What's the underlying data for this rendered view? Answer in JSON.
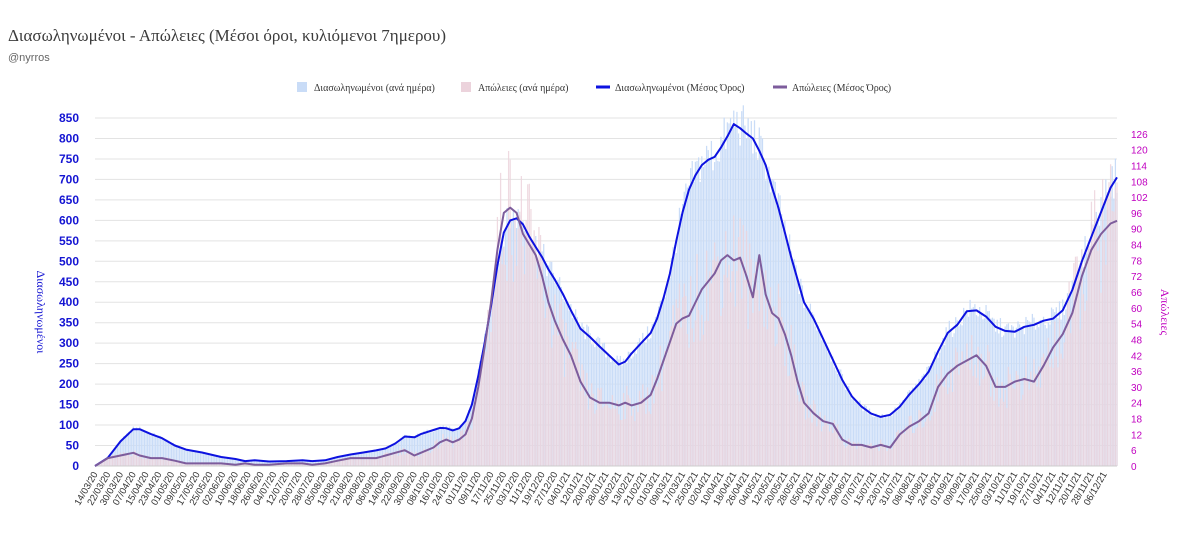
{
  "header": {
    "title": "Διασωληνωμένοι - Απώλειες (Μέσοι όροι, κυλιόμενοι 7ημερου)",
    "handle": "@nyrros"
  },
  "chart_data": {
    "type": "bar",
    "title": "Διασωληνωμένοι - Απώλειες (Μέσοι όροι, κυλιόμενοι 7ημερου)",
    "legend_position": "top",
    "grid": "horizontal",
    "ylabel": "Διασωληνωμένοι",
    "y2label": "Απώλειες",
    "ylim": [
      0,
      850
    ],
    "y2lim": [
      0,
      132
    ],
    "yticks": [
      0,
      50,
      100,
      150,
      200,
      250,
      300,
      350,
      400,
      450,
      500,
      550,
      600,
      650,
      700,
      750,
      800,
      850
    ],
    "y2ticks": [
      0,
      6,
      12,
      18,
      24,
      30,
      36,
      42,
      48,
      54,
      60,
      66,
      72,
      78,
      84,
      90,
      96,
      102,
      108,
      114,
      120,
      126
    ],
    "x_start": "2020-03-14",
    "x_end": "2021-12-14",
    "x_ticks": [
      "14/03/20",
      "22/03/20",
      "30/03/20",
      "07/04/20",
      "15/04/20",
      "23/04/20",
      "01/05/20",
      "09/05/20",
      "17/05/20",
      "25/05/20",
      "02/06/20",
      "10/06/20",
      "18/06/20",
      "26/06/20",
      "04/07/20",
      "12/07/20",
      "20/07/20",
      "28/07/20",
      "05/08/20",
      "13/08/20",
      "21/08/20",
      "29/08/20",
      "06/09/20",
      "14/09/20",
      "22/09/20",
      "30/09/20",
      "08/10/20",
      "16/10/20",
      "24/10/20",
      "01/11/20",
      "09/11/20",
      "17/11/20",
      "25/11/20",
      "03/12/20",
      "11/12/20",
      "19/12/20",
      "27/12/20",
      "04/01/21",
      "12/01/21",
      "20/01/21",
      "28/01/21",
      "05/02/21",
      "13/02/21",
      "21/02/21",
      "01/03/21",
      "09/03/21",
      "17/03/21",
      "25/03/21",
      "02/04/21",
      "10/04/21",
      "18/04/21",
      "26/04/21",
      "04/05/21",
      "12/05/21",
      "20/05/21",
      "28/05/21",
      "05/06/21",
      "13/06/21",
      "21/06/21",
      "29/06/21",
      "07/07/21",
      "15/07/21",
      "23/07/21",
      "31/07/21",
      "08/08/21",
      "16/08/21",
      "24/08/21",
      "01/09/21",
      "09/09/21",
      "17/09/21",
      "25/09/21",
      "03/10/21",
      "11/10/21",
      "19/10/21",
      "27/10/21",
      "04/11/21",
      "12/11/21",
      "20/11/21",
      "28/11/21",
      "06/12/21"
    ],
    "colors": {
      "intubated_daily": "#c9dcf7",
      "deaths_daily": "#ecd3dc",
      "intubated_avg": "#0d12e0",
      "deaths_avg": "#7d5c9c",
      "grid": "#e3e3e3",
      "left_axis": "#1414d2",
      "right_axis": "#c000c0"
    },
    "series": [
      {
        "name": "Διασωληνωμένοι (ανά ημέρα)",
        "type": "bar",
        "axis": "left",
        "note": "daily values closely follow the 7-day average series"
      },
      {
        "name": "Απώλειες (ανά ημέρα)",
        "type": "bar",
        "axis": "right",
        "note": "daily values closely follow the 7-day average series"
      },
      {
        "name": "Διασωληνωμένοι (Μέσος Όρος)",
        "type": "line",
        "axis": "left",
        "points": [
          [
            "2020-03-14",
            0
          ],
          [
            "2020-03-22",
            20
          ],
          [
            "2020-03-30",
            60
          ],
          [
            "2020-04-07",
            90
          ],
          [
            "2020-04-11",
            90
          ],
          [
            "2020-04-18",
            78
          ],
          [
            "2020-04-25",
            68
          ],
          [
            "2020-05-03",
            50
          ],
          [
            "2020-05-10",
            40
          ],
          [
            "2020-05-20",
            33
          ],
          [
            "2020-06-01",
            22
          ],
          [
            "2020-06-10",
            17
          ],
          [
            "2020-06-16",
            12
          ],
          [
            "2020-06-22",
            14
          ],
          [
            "2020-07-01",
            11
          ],
          [
            "2020-07-12",
            12
          ],
          [
            "2020-07-22",
            14
          ],
          [
            "2020-07-28",
            12
          ],
          [
            "2020-08-05",
            14
          ],
          [
            "2020-08-13",
            22
          ],
          [
            "2020-08-21",
            28
          ],
          [
            "2020-08-29",
            33
          ],
          [
            "2020-09-06",
            38
          ],
          [
            "2020-09-12",
            43
          ],
          [
            "2020-09-18",
            55
          ],
          [
            "2020-09-24",
            72
          ],
          [
            "2020-09-30",
            70
          ],
          [
            "2020-10-04",
            78
          ],
          [
            "2020-10-12",
            88
          ],
          [
            "2020-10-16",
            93
          ],
          [
            "2020-10-20",
            92
          ],
          [
            "2020-10-24",
            87
          ],
          [
            "2020-10-28",
            92
          ],
          [
            "2020-11-01",
            110
          ],
          [
            "2020-11-05",
            150
          ],
          [
            "2020-11-09",
            220
          ],
          [
            "2020-11-13",
            300
          ],
          [
            "2020-11-17",
            390
          ],
          [
            "2020-11-21",
            490
          ],
          [
            "2020-11-25",
            570
          ],
          [
            "2020-11-29",
            600
          ],
          [
            "2020-12-03",
            605
          ],
          [
            "2020-12-07",
            590
          ],
          [
            "2020-12-11",
            560
          ],
          [
            "2020-12-15",
            535
          ],
          [
            "2020-12-19",
            510
          ],
          [
            "2020-12-23",
            480
          ],
          [
            "2020-12-27",
            455
          ],
          [
            "2021-01-01",
            420
          ],
          [
            "2021-01-06",
            380
          ],
          [
            "2021-01-12",
            335
          ],
          [
            "2021-01-18",
            315
          ],
          [
            "2021-01-24",
            292
          ],
          [
            "2021-01-30",
            270
          ],
          [
            "2021-02-05",
            248
          ],
          [
            "2021-02-09",
            255
          ],
          [
            "2021-02-13",
            275
          ],
          [
            "2021-02-19",
            300
          ],
          [
            "2021-02-25",
            325
          ],
          [
            "2021-03-01",
            360
          ],
          [
            "2021-03-05",
            410
          ],
          [
            "2021-03-09",
            470
          ],
          [
            "2021-03-13",
            550
          ],
          [
            "2021-03-17",
            620
          ],
          [
            "2021-03-21",
            675
          ],
          [
            "2021-03-25",
            710
          ],
          [
            "2021-03-29",
            735
          ],
          [
            "2021-04-02",
            748
          ],
          [
            "2021-04-06",
            755
          ],
          [
            "2021-04-10",
            778
          ],
          [
            "2021-04-14",
            805
          ],
          [
            "2021-04-18",
            835
          ],
          [
            "2021-04-22",
            825
          ],
          [
            "2021-04-26",
            812
          ],
          [
            "2021-04-30",
            800
          ],
          [
            "2021-05-04",
            770
          ],
          [
            "2021-05-08",
            735
          ],
          [
            "2021-05-12",
            680
          ],
          [
            "2021-05-16",
            630
          ],
          [
            "2021-05-20",
            570
          ],
          [
            "2021-05-24",
            510
          ],
          [
            "2021-05-28",
            455
          ],
          [
            "2021-06-01",
            400
          ],
          [
            "2021-06-07",
            360
          ],
          [
            "2021-06-13",
            310
          ],
          [
            "2021-06-19",
            260
          ],
          [
            "2021-06-25",
            210
          ],
          [
            "2021-07-01",
            170
          ],
          [
            "2021-07-07",
            145
          ],
          [
            "2021-07-13",
            128
          ],
          [
            "2021-07-19",
            120
          ],
          [
            "2021-07-25",
            125
          ],
          [
            "2021-07-31",
            145
          ],
          [
            "2021-08-06",
            175
          ],
          [
            "2021-08-12",
            200
          ],
          [
            "2021-08-18",
            230
          ],
          [
            "2021-08-24",
            280
          ],
          [
            "2021-08-30",
            325
          ],
          [
            "2021-09-05",
            345
          ],
          [
            "2021-09-11",
            378
          ],
          [
            "2021-09-17",
            380
          ],
          [
            "2021-09-23",
            365
          ],
          [
            "2021-09-29",
            340
          ],
          [
            "2021-10-05",
            330
          ],
          [
            "2021-10-11",
            328
          ],
          [
            "2021-10-17",
            340
          ],
          [
            "2021-10-23",
            345
          ],
          [
            "2021-10-29",
            355
          ],
          [
            "2021-11-04",
            360
          ],
          [
            "2021-11-10",
            380
          ],
          [
            "2021-11-16",
            430
          ],
          [
            "2021-11-22",
            500
          ],
          [
            "2021-11-28",
            560
          ],
          [
            "2021-12-04",
            620
          ],
          [
            "2021-12-10",
            680
          ],
          [
            "2021-12-14",
            705
          ]
        ]
      },
      {
        "name": "Απώλειες (Μέσος Όρος)",
        "type": "line",
        "axis": "right",
        "points": [
          [
            "2020-03-14",
            0
          ],
          [
            "2020-03-22",
            3
          ],
          [
            "2020-03-30",
            4
          ],
          [
            "2020-04-07",
            5
          ],
          [
            "2020-04-11",
            4
          ],
          [
            "2020-04-18",
            3
          ],
          [
            "2020-04-25",
            3
          ],
          [
            "2020-05-03",
            2
          ],
          [
            "2020-05-10",
            1
          ],
          [
            "2020-05-20",
            1
          ],
          [
            "2020-06-01",
            1
          ],
          [
            "2020-06-10",
            0.5
          ],
          [
            "2020-06-16",
            1
          ],
          [
            "2020-06-22",
            0.5
          ],
          [
            "2020-07-01",
            0.5
          ],
          [
            "2020-07-12",
            1
          ],
          [
            "2020-07-22",
            1
          ],
          [
            "2020-07-28",
            0.5
          ],
          [
            "2020-08-05",
            1
          ],
          [
            "2020-08-13",
            2
          ],
          [
            "2020-08-21",
            3
          ],
          [
            "2020-08-29",
            3
          ],
          [
            "2020-09-06",
            3
          ],
          [
            "2020-09-12",
            4
          ],
          [
            "2020-09-18",
            5
          ],
          [
            "2020-09-24",
            6
          ],
          [
            "2020-09-30",
            4
          ],
          [
            "2020-10-04",
            5
          ],
          [
            "2020-10-12",
            7
          ],
          [
            "2020-10-16",
            9
          ],
          [
            "2020-10-20",
            10
          ],
          [
            "2020-10-24",
            9
          ],
          [
            "2020-10-28",
            10
          ],
          [
            "2020-11-01",
            12
          ],
          [
            "2020-11-05",
            18
          ],
          [
            "2020-11-09",
            30
          ],
          [
            "2020-11-13",
            45
          ],
          [
            "2020-11-17",
            62
          ],
          [
            "2020-11-21",
            82
          ],
          [
            "2020-11-25",
            96
          ],
          [
            "2020-11-29",
            98
          ],
          [
            "2020-12-03",
            96
          ],
          [
            "2020-12-07",
            88
          ],
          [
            "2020-12-11",
            84
          ],
          [
            "2020-12-15",
            80
          ],
          [
            "2020-12-19",
            72
          ],
          [
            "2020-12-23",
            62
          ],
          [
            "2020-12-27",
            55
          ],
          [
            "2021-01-01",
            48
          ],
          [
            "2021-01-06",
            42
          ],
          [
            "2021-01-12",
            32
          ],
          [
            "2021-01-18",
            26
          ],
          [
            "2021-01-24",
            24
          ],
          [
            "2021-01-30",
            24
          ],
          [
            "2021-02-05",
            23
          ],
          [
            "2021-02-09",
            24
          ],
          [
            "2021-02-13",
            23
          ],
          [
            "2021-02-19",
            24
          ],
          [
            "2021-02-25",
            27
          ],
          [
            "2021-03-01",
            33
          ],
          [
            "2021-03-05",
            40
          ],
          [
            "2021-03-09",
            47
          ],
          [
            "2021-03-13",
            54
          ],
          [
            "2021-03-17",
            56
          ],
          [
            "2021-03-21",
            57
          ],
          [
            "2021-03-25",
            62
          ],
          [
            "2021-03-29",
            67
          ],
          [
            "2021-04-02",
            70
          ],
          [
            "2021-04-06",
            73
          ],
          [
            "2021-04-10",
            78
          ],
          [
            "2021-04-14",
            80
          ],
          [
            "2021-04-18",
            78
          ],
          [
            "2021-04-22",
            79
          ],
          [
            "2021-04-26",
            72
          ],
          [
            "2021-04-30",
            64
          ],
          [
            "2021-05-04",
            80
          ],
          [
            "2021-05-08",
            65
          ],
          [
            "2021-05-12",
            58
          ],
          [
            "2021-05-16",
            56
          ],
          [
            "2021-05-20",
            50
          ],
          [
            "2021-05-24",
            42
          ],
          [
            "2021-05-28",
            32
          ],
          [
            "2021-06-01",
            24
          ],
          [
            "2021-06-07",
            20
          ],
          [
            "2021-06-13",
            17
          ],
          [
            "2021-06-19",
            16
          ],
          [
            "2021-06-25",
            10
          ],
          [
            "2021-07-01",
            8
          ],
          [
            "2021-07-07",
            8
          ],
          [
            "2021-07-13",
            7
          ],
          [
            "2021-07-19",
            8
          ],
          [
            "2021-07-25",
            7
          ],
          [
            "2021-07-31",
            12
          ],
          [
            "2021-08-06",
            15
          ],
          [
            "2021-08-12",
            17
          ],
          [
            "2021-08-18",
            20
          ],
          [
            "2021-08-24",
            30
          ],
          [
            "2021-08-30",
            35
          ],
          [
            "2021-09-05",
            38
          ],
          [
            "2021-09-11",
            40
          ],
          [
            "2021-09-17",
            42
          ],
          [
            "2021-09-23",
            38
          ],
          [
            "2021-09-29",
            30
          ],
          [
            "2021-10-05",
            30
          ],
          [
            "2021-10-11",
            32
          ],
          [
            "2021-10-17",
            33
          ],
          [
            "2021-10-23",
            32
          ],
          [
            "2021-10-29",
            38
          ],
          [
            "2021-11-04",
            45
          ],
          [
            "2021-11-10",
            50
          ],
          [
            "2021-11-16",
            58
          ],
          [
            "2021-11-22",
            72
          ],
          [
            "2021-11-28",
            82
          ],
          [
            "2021-12-04",
            88
          ],
          [
            "2021-12-10",
            92
          ],
          [
            "2021-12-14",
            93
          ]
        ]
      }
    ]
  }
}
